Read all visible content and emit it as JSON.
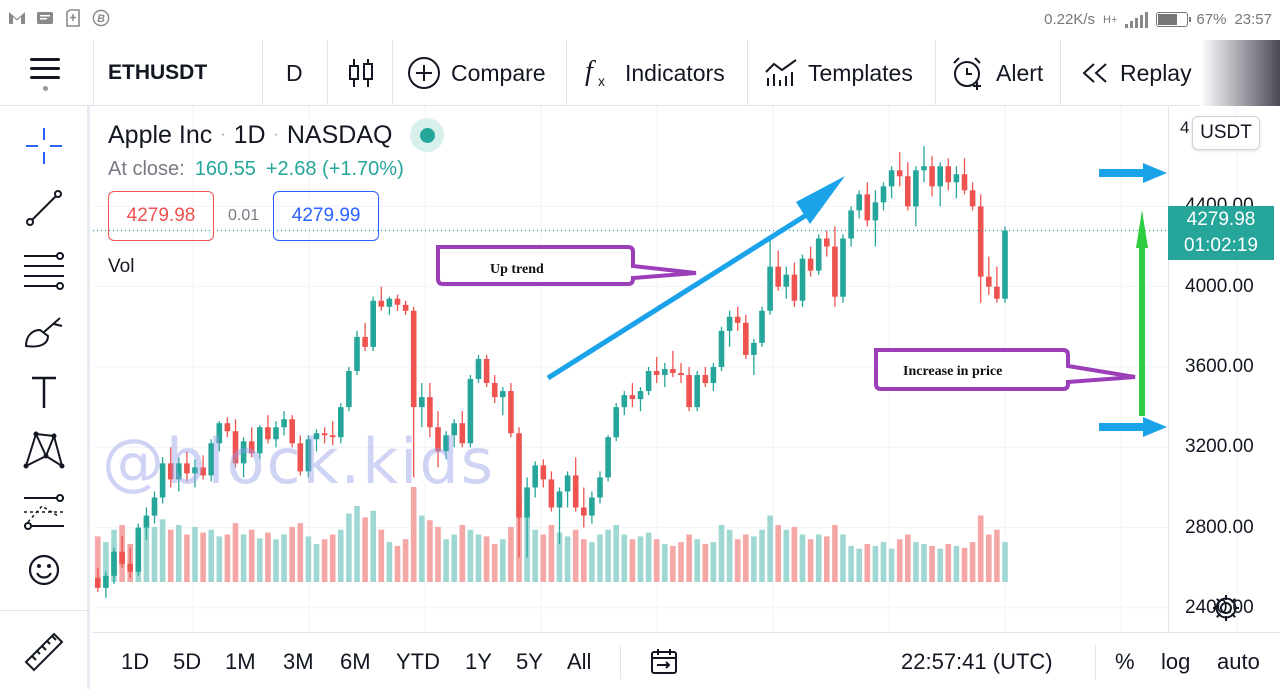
{
  "status_bar": {
    "left_icons": [
      "gmail-icon",
      "message-icon",
      "sim-icon",
      "bitcoin-icon"
    ],
    "net_speed": "0.22K/s",
    "network": "H+",
    "battery": "67%",
    "time": "23:57"
  },
  "toolbar": {
    "symbol": "ETHUSDT",
    "interval": "D",
    "compare_label": "Compare",
    "indicators_label": "Indicators",
    "templates_label": "Templates",
    "alert_label": "Alert",
    "replay_label": "Replay"
  },
  "legend": {
    "name": "Apple Inc",
    "interval": "1D",
    "exchange": "NASDAQ",
    "at_close_label": "At close:",
    "close_price": "160.55",
    "change": "+2.68 (+1.70%)",
    "bid": "4279.98",
    "spread": "0.01",
    "ask": "4279.99",
    "vol_label": "Vol"
  },
  "price_axis": {
    "currency_button": "USDT",
    "labels": [
      "4400.00",
      "4000.00",
      "3600.00",
      "3200.00",
      "2800.00",
      "2400.00"
    ],
    "top_partial": "4",
    "current_price": "4279.98",
    "countdown": "01:02:19"
  },
  "annotations": {
    "uptrend_label": "Up trend",
    "increase_label": "Increase in price",
    "watermark": "@block.kids"
  },
  "bottom_bar": {
    "ranges": [
      "1D",
      "5D",
      "1M",
      "3M",
      "6M",
      "YTD",
      "1Y",
      "5Y",
      "All"
    ],
    "time": "22:57:41 (UTC)",
    "percent": "%",
    "log": "log",
    "auto": "auto"
  },
  "colors": {
    "up": "#26a69a",
    "down": "#ef5350",
    "up_volume": "#9fd8d2",
    "down_volume": "#f4a7a5",
    "callout": "#9b3fb8",
    "arrow_blue": "#1aa3e8",
    "arrow_green": "#2ecc40"
  },
  "chart_data": {
    "type": "candlestick",
    "symbol": "ETHUSDT",
    "interval": "1D",
    "candles": [
      [
        2550,
        2600,
        2480,
        2500
      ],
      [
        2500,
        2580,
        2450,
        2560
      ],
      [
        2560,
        2700,
        2520,
        2680
      ],
      [
        2680,
        2760,
        2600,
        2620
      ],
      [
        2620,
        2700,
        2550,
        2580
      ],
      [
        2580,
        2820,
        2560,
        2800
      ],
      [
        2800,
        2900,
        2740,
        2860
      ],
      [
        2860,
        2980,
        2820,
        2950
      ],
      [
        2950,
        3150,
        2920,
        3120
      ],
      [
        3120,
        3200,
        3000,
        3040
      ],
      [
        3040,
        3150,
        2980,
        3120
      ],
      [
        3120,
        3180,
        3030,
        3070
      ],
      [
        3070,
        3140,
        3000,
        3100
      ],
      [
        3100,
        3160,
        3040,
        3060
      ],
      [
        3060,
        3240,
        3030,
        3220
      ],
      [
        3220,
        3330,
        3180,
        3320
      ],
      [
        3320,
        3350,
        3250,
        3280
      ],
      [
        3280,
        3340,
        3100,
        3120
      ],
      [
        3120,
        3250,
        3050,
        3230
      ],
      [
        3230,
        3300,
        3150,
        3170
      ],
      [
        3170,
        3310,
        3140,
        3300
      ],
      [
        3300,
        3360,
        3220,
        3240
      ],
      [
        3240,
        3330,
        3200,
        3300
      ],
      [
        3300,
        3380,
        3260,
        3340
      ],
      [
        3340,
        3360,
        3200,
        3220
      ],
      [
        3220,
        3260,
        3060,
        3080
      ],
      [
        3080,
        3260,
        3050,
        3240
      ],
      [
        3240,
        3290,
        3180,
        3270
      ],
      [
        3270,
        3300,
        3220,
        3260
      ],
      [
        3260,
        3330,
        3210,
        3250
      ],
      [
        3250,
        3420,
        3220,
        3400
      ],
      [
        3400,
        3600,
        3380,
        3580
      ],
      [
        3580,
        3780,
        3560,
        3750
      ],
      [
        3750,
        3820,
        3680,
        3700
      ],
      [
        3700,
        3950,
        3680,
        3930
      ],
      [
        3930,
        4000,
        3880,
        3900
      ],
      [
        3900,
        3950,
        3860,
        3940
      ],
      [
        3940,
        3960,
        3880,
        3910
      ],
      [
        3910,
        3930,
        3860,
        3880
      ],
      [
        3880,
        3900,
        3050,
        3400
      ],
      [
        3400,
        3520,
        3300,
        3450
      ],
      [
        3450,
        3520,
        3250,
        3300
      ],
      [
        3300,
        3380,
        3100,
        3180
      ],
      [
        3180,
        3280,
        3140,
        3260
      ],
      [
        3260,
        3340,
        3200,
        3320
      ],
      [
        3320,
        3380,
        3200,
        3220
      ],
      [
        3220,
        3560,
        3200,
        3540
      ],
      [
        3540,
        3660,
        3520,
        3640
      ],
      [
        3640,
        3660,
        3500,
        3520
      ],
      [
        3520,
        3560,
        3420,
        3450
      ],
      [
        3450,
        3500,
        3360,
        3480
      ],
      [
        3480,
        3520,
        3250,
        3270
      ],
      [
        3270,
        3300,
        2650,
        2850
      ],
      [
        2850,
        3050,
        2650,
        3000
      ],
      [
        3000,
        3130,
        2950,
        3110
      ],
      [
        3110,
        3140,
        3000,
        3040
      ],
      [
        3040,
        3080,
        2880,
        2900
      ],
      [
        2900,
        3000,
        2720,
        2980
      ],
      [
        2980,
        3080,
        2900,
        3060
      ],
      [
        3060,
        3150,
        2880,
        2900
      ],
      [
        2900,
        3000,
        2800,
        2860
      ],
      [
        2860,
        2980,
        2820,
        2950
      ],
      [
        2950,
        3080,
        2920,
        3050
      ],
      [
        3050,
        3260,
        3030,
        3250
      ],
      [
        3250,
        3420,
        3230,
        3400
      ],
      [
        3400,
        3480,
        3360,
        3460
      ],
      [
        3460,
        3520,
        3400,
        3440
      ],
      [
        3440,
        3500,
        3380,
        3480
      ],
      [
        3480,
        3600,
        3460,
        3580
      ],
      [
        3580,
        3650,
        3520,
        3560
      ],
      [
        3560,
        3620,
        3500,
        3590
      ],
      [
        3590,
        3680,
        3550,
        3570
      ],
      [
        3570,
        3620,
        3520,
        3560
      ],
      [
        3560,
        3600,
        3380,
        3400
      ],
      [
        3400,
        3580,
        3380,
        3560
      ],
      [
        3560,
        3600,
        3500,
        3520
      ],
      [
        3520,
        3620,
        3480,
        3600
      ],
      [
        3600,
        3800,
        3580,
        3780
      ],
      [
        3780,
        3880,
        3700,
        3850
      ],
      [
        3850,
        3900,
        3780,
        3820
      ],
      [
        3820,
        3860,
        3640,
        3660
      ],
      [
        3660,
        3740,
        3560,
        3720
      ],
      [
        3720,
        3900,
        3700,
        3880
      ],
      [
        3880,
        4250,
        3860,
        4100
      ],
      [
        4100,
        4180,
        3980,
        4000
      ],
      [
        4000,
        4100,
        3940,
        4060
      ],
      [
        4060,
        4120,
        3900,
        3930
      ],
      [
        3930,
        4160,
        3900,
        4140
      ],
      [
        4140,
        4200,
        4050,
        4080
      ],
      [
        4080,
        4260,
        4060,
        4240
      ],
      [
        4240,
        4280,
        4150,
        4200
      ],
      [
        4200,
        4300,
        3900,
        3950
      ],
      [
        3950,
        4260,
        3920,
        4240
      ],
      [
        4240,
        4400,
        4200,
        4380
      ],
      [
        4380,
        4480,
        4340,
        4460
      ],
      [
        4460,
        4520,
        4300,
        4330
      ],
      [
        4330,
        4480,
        4200,
        4420
      ],
      [
        4420,
        4520,
        4380,
        4500
      ],
      [
        4500,
        4600,
        4440,
        4580
      ],
      [
        4580,
        4670,
        4500,
        4550
      ],
      [
        4550,
        4620,
        4380,
        4400
      ],
      [
        4400,
        4600,
        4300,
        4580
      ],
      [
        4580,
        4700,
        4520,
        4600
      ],
      [
        4600,
        4650,
        4450,
        4500
      ],
      [
        4500,
        4620,
        4400,
        4600
      ],
      [
        4600,
        4640,
        4480,
        4520
      ],
      [
        4520,
        4600,
        4440,
        4560
      ],
      [
        4560,
        4640,
        4460,
        4480
      ],
      [
        4480,
        4520,
        4380,
        4400
      ],
      [
        4400,
        4460,
        3920,
        4050
      ],
      [
        4050,
        4150,
        3960,
        4000
      ],
      [
        4000,
        4100,
        3920,
        3940
      ],
      [
        3940,
        4300,
        3920,
        4280
      ]
    ],
    "volumes": [
      0.48,
      0.42,
      0.55,
      0.6,
      0.4,
      0.5,
      0.63,
      0.58,
      0.66,
      0.55,
      0.6,
      0.5,
      0.58,
      0.52,
      0.55,
      0.48,
      0.5,
      0.62,
      0.5,
      0.55,
      0.46,
      0.52,
      0.45,
      0.5,
      0.58,
      0.62,
      0.48,
      0.4,
      0.45,
      0.5,
      0.55,
      0.72,
      0.8,
      0.68,
      0.75,
      0.55,
      0.42,
      0.38,
      0.45,
      1.0,
      0.7,
      0.65,
      0.58,
      0.45,
      0.5,
      0.6,
      0.55,
      0.5,
      0.48,
      0.4,
      0.45,
      0.58,
      0.88,
      0.75,
      0.55,
      0.5,
      0.6,
      0.52,
      0.48,
      0.55,
      0.45,
      0.42,
      0.5,
      0.55,
      0.6,
      0.5,
      0.45,
      0.48,
      0.52,
      0.45,
      0.4,
      0.38,
      0.42,
      0.5,
      0.45,
      0.4,
      0.42,
      0.6,
      0.55,
      0.45,
      0.5,
      0.48,
      0.55,
      0.7,
      0.6,
      0.55,
      0.58,
      0.5,
      0.45,
      0.5,
      0.48,
      0.6,
      0.5,
      0.38,
      0.35,
      0.4,
      0.38,
      0.42,
      0.35,
      0.45,
      0.5,
      0.42,
      0.4,
      0.38,
      0.35,
      0.4,
      0.38,
      0.36,
      0.42,
      0.7,
      0.5,
      0.55,
      0.42
    ],
    "ylim": [
      2280,
      4900
    ],
    "ticks": [
      4400,
      4000,
      3600,
      3200,
      2800,
      2400
    ],
    "current_price": 4279.98
  }
}
